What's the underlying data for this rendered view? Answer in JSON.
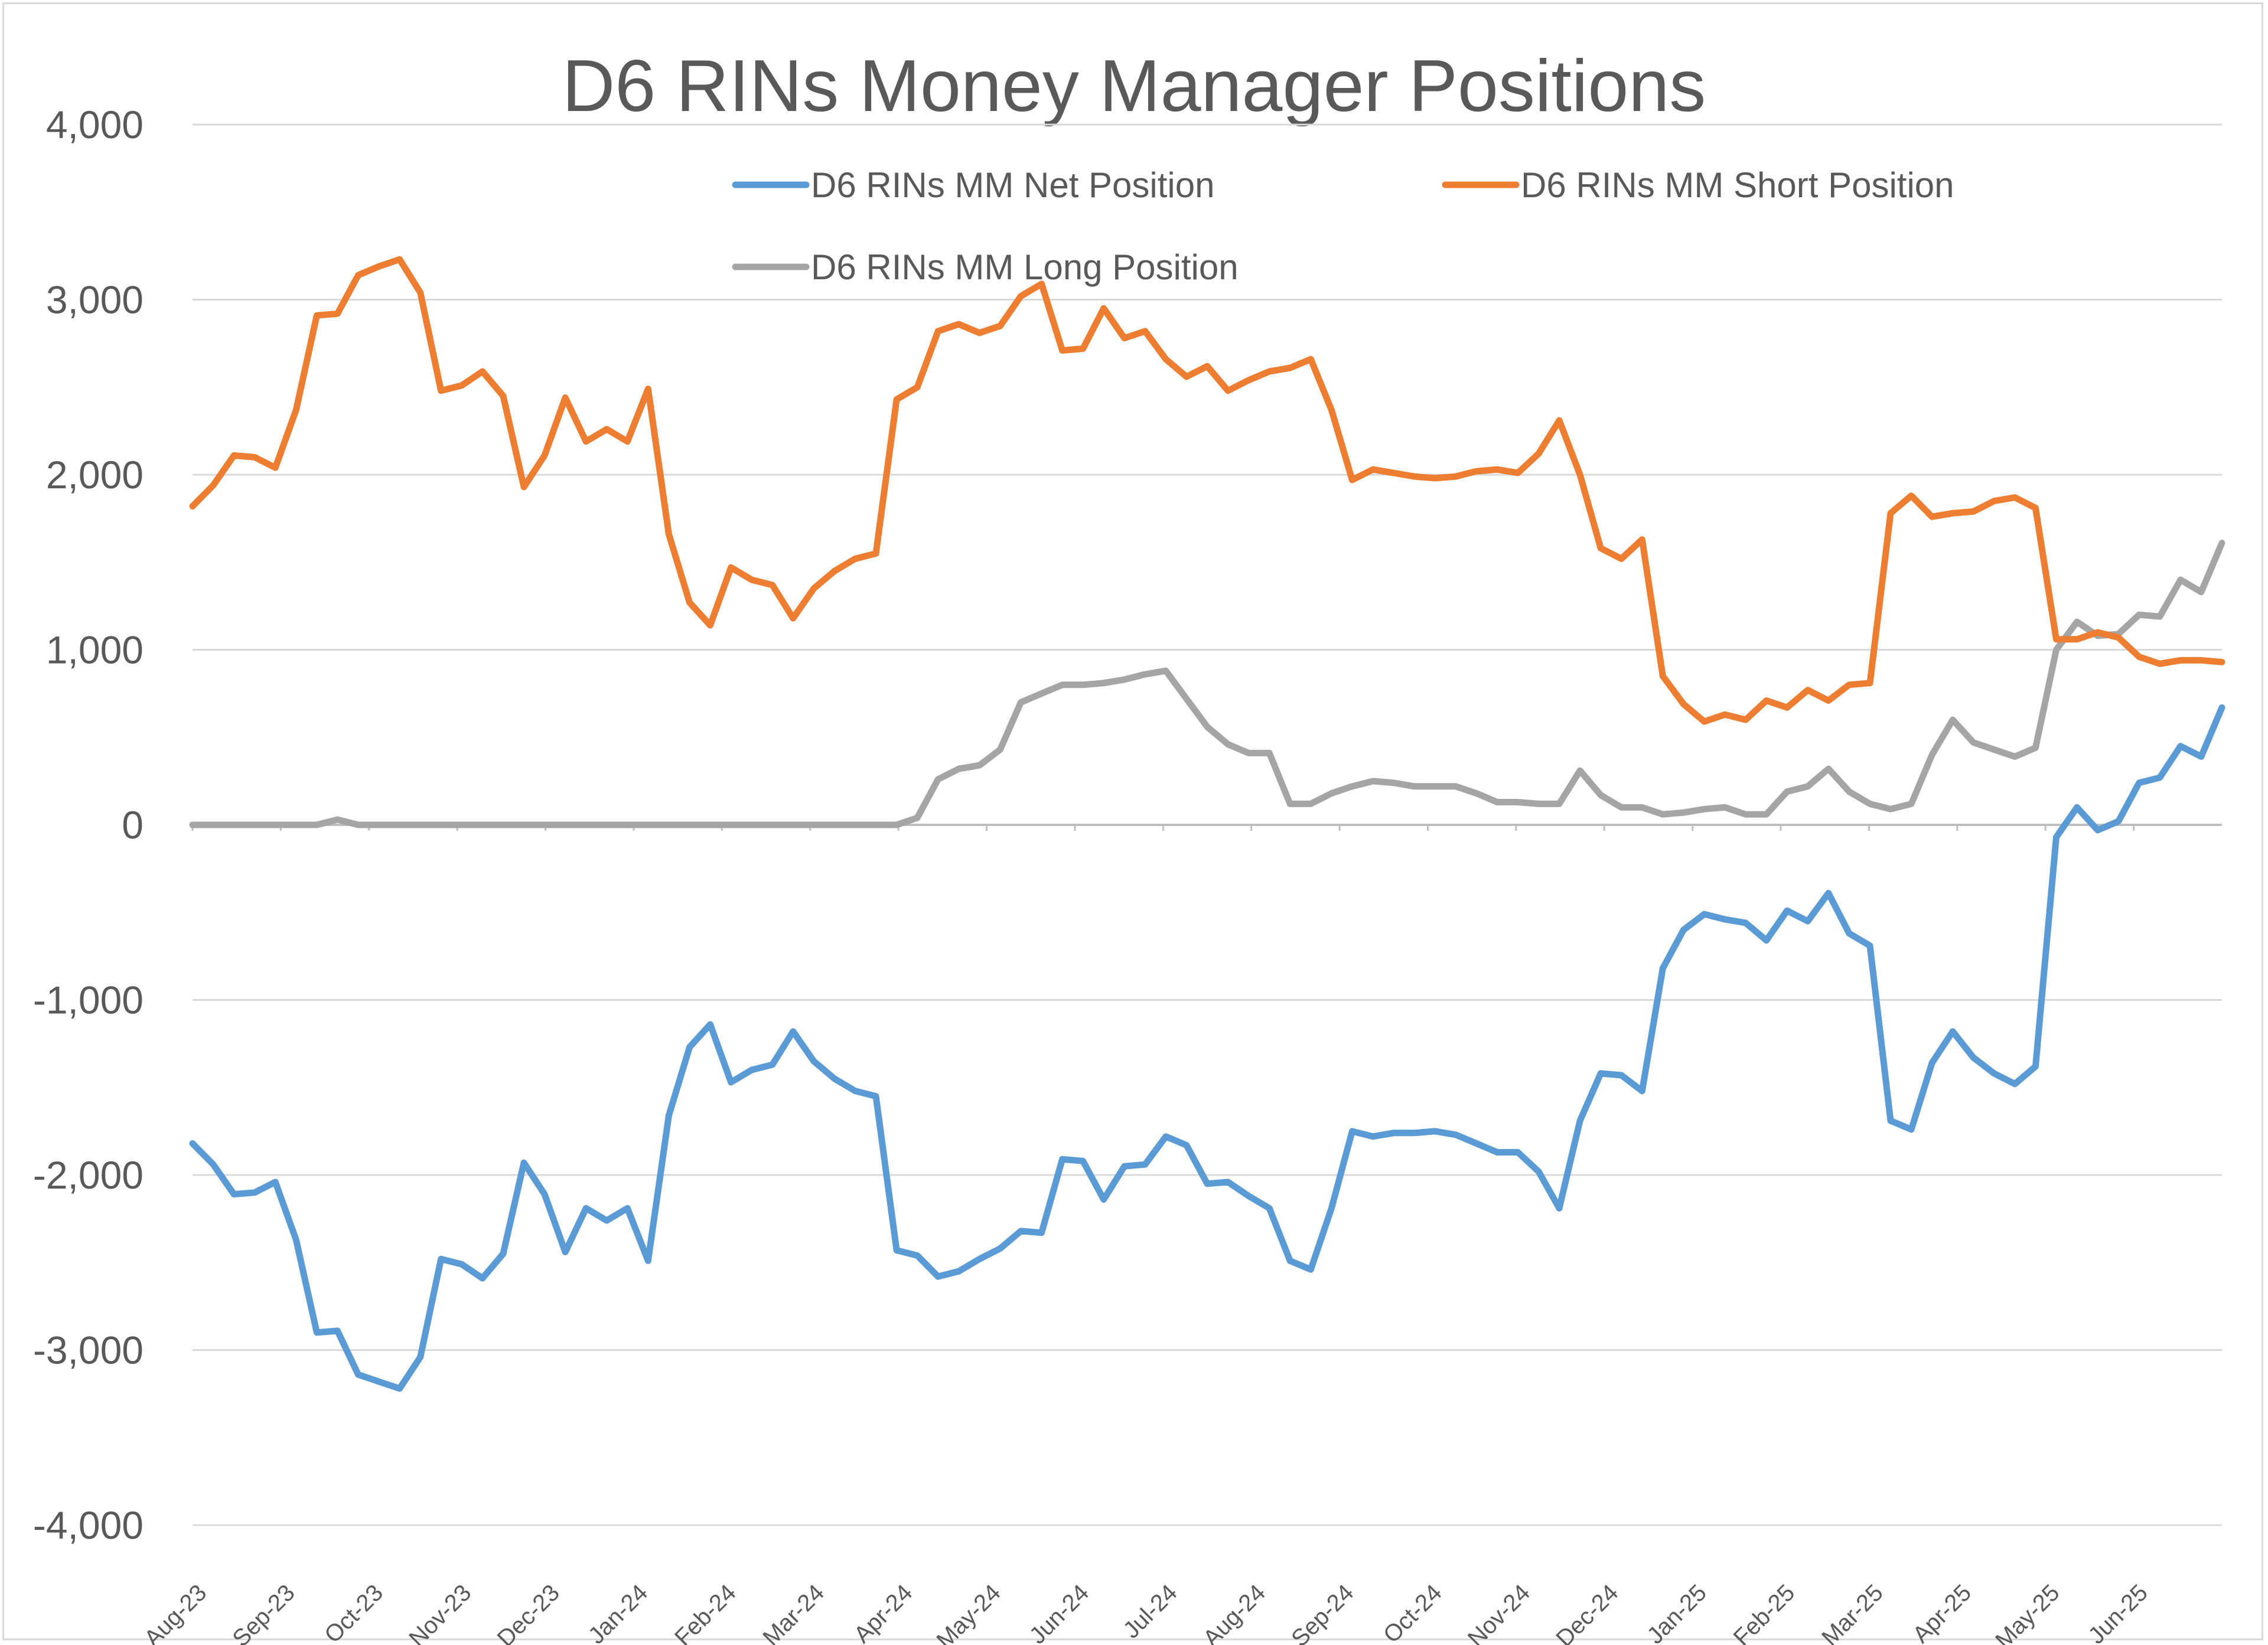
{
  "chart_data": {
    "type": "line",
    "title": "D6 RINs Money Manager Positions",
    "xlabel": "",
    "ylabel": "",
    "ylim": [
      -4000,
      4000
    ],
    "yticks": [
      4000,
      3000,
      2000,
      1000,
      0,
      -1000,
      -2000,
      -3000,
      -4000
    ],
    "ytick_labels": [
      "4,000",
      "3,000",
      "2,000",
      "1,000",
      "0",
      "-1,000",
      "-2,000",
      "-3,000",
      "-4,000"
    ],
    "xtick_labels": [
      "Aug-23",
      "Sep-23",
      "Oct-23",
      "Nov-23",
      "Dec-23",
      "Jan-24",
      "Feb-24",
      "Mar-24",
      "Apr-24",
      "May-24",
      "Jun-24",
      "Jul-24",
      "Aug-24",
      "Sep-24",
      "Oct-24",
      "Nov-24",
      "Dec-24",
      "Jan-25",
      "Feb-25",
      "Mar-25",
      "Apr-25",
      "May-25",
      "Jun-25"
    ],
    "grid": true,
    "legend_position": "top",
    "series": [
      {
        "name": "D6 RINs MM Net Position",
        "color": "#5b9bd5",
        "values": [
          -1820,
          -1940,
          -2110,
          -2100,
          -2040,
          -2370,
          -2900,
          -2890,
          -3140,
          -3180,
          -3220,
          -3040,
          -2480,
          -2510,
          -2590,
          -2450,
          -1930,
          -2110,
          -2440,
          -2190,
          -2260,
          -2190,
          -2490,
          -1660,
          -1270,
          -1140,
          -1470,
          -1400,
          -1370,
          -1180,
          -1350,
          -1450,
          -1520,
          -1550,
          -2430,
          -2460,
          -2580,
          -2550,
          -2480,
          -2420,
          -2320,
          -2330,
          -1910,
          -1920,
          -2140,
          -1950,
          -1940,
          -1780,
          -1830,
          -2050,
          -2040,
          -2120,
          -2190,
          -2490,
          -2540,
          -2190,
          -1750,
          -1780,
          -1760,
          -1760,
          -1750,
          -1770,
          -1820,
          -1870,
          -1870,
          -1980,
          -2190,
          -1690,
          -1420,
          -1430,
          -1520,
          -820,
          -600,
          -510,
          -540,
          -560,
          -660,
          -490,
          -550,
          -390,
          -620,
          -690,
          -1690,
          -1740,
          -1360,
          -1180,
          -1330,
          -1420,
          -1480,
          -1380,
          -70,
          100,
          -30,
          20,
          240,
          270,
          450,
          390,
          670
        ]
      },
      {
        "name": "D6 RINs MM Short Position",
        "color": "#ed7d31",
        "values": [
          1820,
          1940,
          2110,
          2100,
          2040,
          2370,
          2910,
          2920,
          3140,
          3190,
          3230,
          3040,
          2480,
          2510,
          2590,
          2450,
          1930,
          2110,
          2440,
          2190,
          2260,
          2190,
          2490,
          1660,
          1270,
          1140,
          1470,
          1400,
          1370,
          1180,
          1350,
          1450,
          1520,
          1550,
          2430,
          2500,
          2820,
          2860,
          2810,
          2850,
          3020,
          3090,
          2710,
          2720,
          2950,
          2780,
          2820,
          2660,
          2560,
          2620,
          2480,
          2540,
          2590,
          2610,
          2660,
          2370,
          1970,
          2030,
          2010,
          1990,
          1980,
          1990,
          2020,
          2030,
          2010,
          2120,
          2310,
          2000,
          1580,
          1520,
          1630,
          850,
          690,
          590,
          630,
          600,
          710,
          670,
          770,
          710,
          800,
          810,
          1780,
          1880,
          1760,
          1780,
          1790,
          1850,
          1870,
          1810,
          1060,
          1060,
          1100,
          1070,
          960,
          920,
          940,
          940,
          930
        ]
      },
      {
        "name": "D6 RINs MM Long Position",
        "color": "#a5a5a5",
        "values": [
          0,
          0,
          0,
          0,
          0,
          0,
          0,
          30,
          0,
          0,
          0,
          0,
          0,
          0,
          0,
          0,
          0,
          0,
          0,
          0,
          0,
          0,
          0,
          0,
          0,
          0,
          0,
          0,
          0,
          0,
          0,
          0,
          0,
          0,
          0,
          40,
          260,
          320,
          340,
          430,
          700,
          750,
          800,
          800,
          810,
          830,
          860,
          880,
          720,
          560,
          460,
          410,
          410,
          120,
          120,
          180,
          220,
          250,
          240,
          220,
          220,
          220,
          180,
          130,
          130,
          120,
          120,
          310,
          170,
          100,
          100,
          60,
          70,
          90,
          100,
          60,
          60,
          190,
          220,
          320,
          190,
          120,
          90,
          120,
          400,
          600,
          470,
          430,
          390,
          440,
          1000,
          1160,
          1080,
          1090,
          1200,
          1190,
          1400,
          1330,
          1610
        ]
      }
    ]
  }
}
